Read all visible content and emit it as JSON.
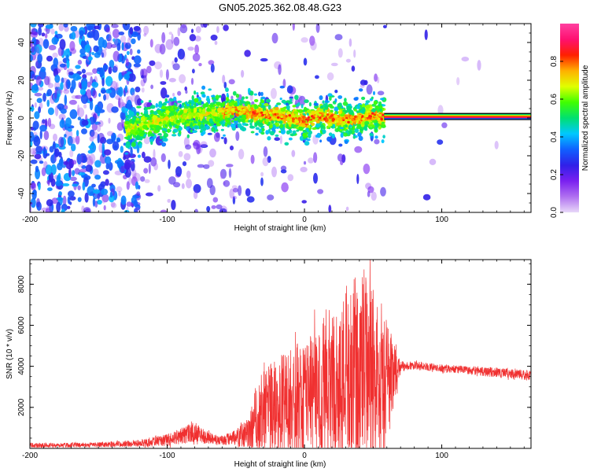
{
  "title": "GN05.2025.362.08.48.G23",
  "chart_data": [
    {
      "type": "heatmap",
      "name": "spectrogram",
      "xlabel": "Height of straight line (km)",
      "ylabel": "Frequency (Hz)",
      "xlim": [
        -200,
        165
      ],
      "ylim": [
        -50,
        50
      ],
      "xticks": [
        "-200",
        "-100",
        "0",
        "100"
      ],
      "xtick_values": [
        -200,
        -100,
        0,
        100
      ],
      "yticks": [
        "40",
        "20",
        "0",
        "-20",
        "-40"
      ],
      "ytick_values": [
        40,
        20,
        0,
        -20,
        -40
      ],
      "colorbar": {
        "label": "Normalized spectral amplitude",
        "range": [
          0,
          1
        ],
        "ticks": [
          "0.0",
          "0.2",
          "0.4",
          "0.6",
          "0.8"
        ],
        "tick_values": [
          0.0,
          0.2,
          0.4,
          0.6,
          0.8
        ],
        "stops": [
          "#e8d8f8",
          "#b070f0",
          "#7a20f0",
          "#3020e8",
          "#1060ff",
          "#00c8ff",
          "#00e070",
          "#40ff00",
          "#e0ff00",
          "#ffb000",
          "#ff2000",
          "#ff1070",
          "#ff40a0"
        ]
      },
      "ridge": {
        "x": [
          -130,
          -115,
          -100,
          -80,
          -60,
          -50,
          -40,
          -30,
          -20,
          -10,
          0,
          10,
          20,
          30,
          40,
          50,
          58
        ],
        "freq": [
          -6,
          -3,
          0,
          2,
          3,
          4,
          3,
          2,
          1,
          0,
          -2,
          1,
          0,
          -1,
          0,
          1,
          0
        ]
      },
      "line_segment": {
        "x": [
          58,
          165
        ],
        "freq": 0.8
      }
    },
    {
      "type": "line",
      "name": "snr",
      "xlabel": "Height of straight line (km)",
      "ylabel": "SNR (10 * v/v)",
      "xlim": [
        -200,
        165
      ],
      "ylim": [
        0,
        9200
      ],
      "xticks": [
        "-200",
        "-100",
        "0",
        "100"
      ],
      "xtick_values": [
        -200,
        -100,
        0,
        100
      ],
      "yticks": [
        "8000",
        "6000",
        "4000",
        "2000"
      ],
      "ytick_values": [
        8000,
        6000,
        4000,
        2000
      ],
      "color": "#f03030",
      "envelope_x": [
        -200,
        -150,
        -120,
        -100,
        -90,
        -80,
        -70,
        -60,
        -50,
        -40,
        -35,
        -30,
        -20,
        -10,
        0,
        10,
        20,
        30,
        40,
        45,
        50,
        55,
        60,
        65,
        70,
        80,
        100,
        120,
        140,
        165
      ],
      "envelope_base": [
        150,
        180,
        250,
        400,
        600,
        800,
        500,
        400,
        500,
        800,
        1500,
        1800,
        2000,
        2300,
        2600,
        2800,
        3200,
        3500,
        3800,
        3600,
        3500,
        3300,
        3200,
        3300,
        4000,
        4050,
        3900,
        3800,
        3700,
        3550
      ],
      "envelope_amp": [
        120,
        120,
        180,
        300,
        400,
        500,
        300,
        250,
        400,
        800,
        1800,
        2000,
        2400,
        2600,
        3000,
        3400,
        4000,
        4400,
        4800,
        5200,
        4800,
        4000,
        3000,
        1800,
        250,
        200,
        200,
        200,
        250,
        250
      ]
    }
  ]
}
